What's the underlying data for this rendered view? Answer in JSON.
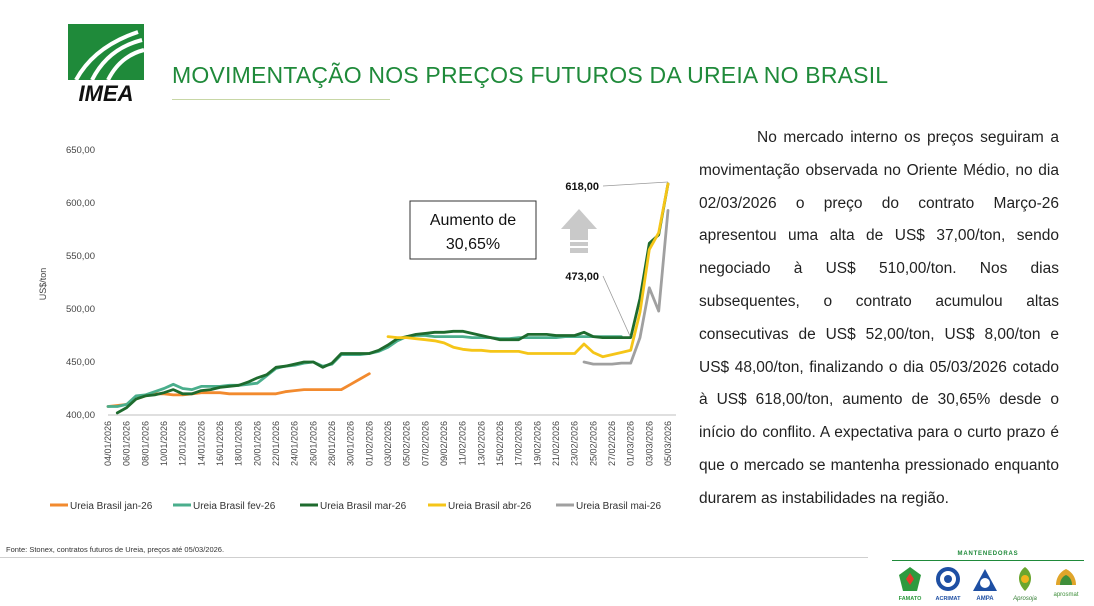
{
  "header": {
    "logo_text": "IMEA",
    "title": "MOVIMENTAÇÃO NOS PREÇOS FUTUROS DA UREIA NO BRASIL"
  },
  "colors": {
    "brand_green": "#1f8a3a",
    "jan": "#f28a2e",
    "fev": "#4aae8c",
    "mar": "#1e6b2e",
    "abr": "#f5c518",
    "mai": "#a0a0a0"
  },
  "chart_data": {
    "type": "line",
    "ylabel": "US$/ton",
    "ylim": [
      400,
      650
    ],
    "yticks": [
      "650,00",
      "600,00",
      "550,00",
      "500,00",
      "450,00",
      "400,00"
    ],
    "x_tick_labels": [
      "04/01/2026",
      "06/01/2026",
      "08/01/2026",
      "10/01/2026",
      "12/01/2026",
      "14/01/2026",
      "16/01/2026",
      "18/01/2026",
      "20/01/2026",
      "22/01/2026",
      "24/01/2026",
      "26/01/2026",
      "28/01/2026",
      "30/01/2026",
      "01/02/2026",
      "03/02/2026",
      "05/02/2026",
      "07/02/2026",
      "09/02/2026",
      "11/02/2026",
      "13/02/2026",
      "15/02/2026",
      "17/02/2026",
      "19/02/2026",
      "21/02/2026",
      "23/02/2026",
      "25/02/2026",
      "27/02/2026",
      "01/03/2026",
      "03/03/2026",
      "05/03/2026"
    ],
    "x_start": "2026-01-04",
    "x_end": "2026-03-05",
    "series": [
      {
        "name": "Ureia Brasil jan-26",
        "color": "#f28a2e",
        "points": [
          [
            "2026-01-04",
            408
          ],
          [
            "2026-01-05",
            409
          ],
          [
            "2026-01-06",
            410
          ],
          [
            "2026-01-07",
            415
          ],
          [
            "2026-01-08",
            418
          ],
          [
            "2026-01-09",
            420
          ],
          [
            "2026-01-10",
            420
          ],
          [
            "2026-01-11",
            419
          ],
          [
            "2026-01-12",
            419
          ],
          [
            "2026-01-13",
            420
          ],
          [
            "2026-01-14",
            421
          ],
          [
            "2026-01-15",
            421
          ],
          [
            "2026-01-16",
            421
          ],
          [
            "2026-01-17",
            420
          ],
          [
            "2026-01-18",
            420
          ],
          [
            "2026-01-19",
            420
          ],
          [
            "2026-01-20",
            420
          ],
          [
            "2026-01-21",
            420
          ],
          [
            "2026-01-22",
            420
          ],
          [
            "2026-01-23",
            422
          ],
          [
            "2026-01-24",
            423
          ],
          [
            "2026-01-25",
            424
          ],
          [
            "2026-01-26",
            424
          ],
          [
            "2026-01-27",
            424
          ],
          [
            "2026-01-28",
            424
          ],
          [
            "2026-01-29",
            424
          ],
          [
            "2026-01-30",
            429
          ],
          [
            "2026-01-31",
            434
          ],
          [
            "2026-02-01",
            439
          ]
        ]
      },
      {
        "name": "Ureia Brasil fev-26",
        "color": "#4aae8c",
        "points": [
          [
            "2026-01-04",
            408
          ],
          [
            "2026-01-05",
            408
          ],
          [
            "2026-01-06",
            410
          ],
          [
            "2026-01-07",
            418
          ],
          [
            "2026-01-08",
            419
          ],
          [
            "2026-01-09",
            422
          ],
          [
            "2026-01-10",
            425
          ],
          [
            "2026-01-11",
            429
          ],
          [
            "2026-01-12",
            425
          ],
          [
            "2026-01-13",
            424
          ],
          [
            "2026-01-14",
            427
          ],
          [
            "2026-01-15",
            427
          ],
          [
            "2026-01-16",
            427
          ],
          [
            "2026-01-17",
            428
          ],
          [
            "2026-01-18",
            428
          ],
          [
            "2026-01-19",
            429
          ],
          [
            "2026-01-20",
            430
          ],
          [
            "2026-01-21",
            437
          ],
          [
            "2026-01-22",
            444
          ],
          [
            "2026-01-23",
            446
          ],
          [
            "2026-01-24",
            447
          ],
          [
            "2026-01-25",
            449
          ],
          [
            "2026-01-26",
            450
          ],
          [
            "2026-01-27",
            446
          ],
          [
            "2026-01-28",
            448
          ],
          [
            "2026-01-29",
            457
          ],
          [
            "2026-01-30",
            457
          ],
          [
            "2026-01-31",
            457
          ],
          [
            "2026-02-01",
            458
          ],
          [
            "2026-02-02",
            460
          ],
          [
            "2026-02-03",
            464
          ],
          [
            "2026-02-04",
            470
          ],
          [
            "2026-02-05",
            474
          ],
          [
            "2026-02-06",
            475
          ],
          [
            "2026-02-07",
            475
          ],
          [
            "2026-02-08",
            474
          ],
          [
            "2026-02-09",
            474
          ],
          [
            "2026-02-10",
            474
          ],
          [
            "2026-02-11",
            474
          ],
          [
            "2026-02-12",
            473
          ],
          [
            "2026-02-13",
            473
          ],
          [
            "2026-02-14",
            473
          ],
          [
            "2026-02-15",
            472
          ],
          [
            "2026-02-16",
            472
          ],
          [
            "2026-02-17",
            473
          ],
          [
            "2026-02-18",
            473
          ],
          [
            "2026-02-19",
            473
          ],
          [
            "2026-02-20",
            473
          ],
          [
            "2026-02-21",
            473
          ],
          [
            "2026-02-22",
            474
          ],
          [
            "2026-02-23",
            474
          ],
          [
            "2026-02-24",
            474
          ],
          [
            "2026-02-25",
            474
          ],
          [
            "2026-02-26",
            474
          ],
          [
            "2026-02-27",
            474
          ],
          [
            "2026-02-28",
            474
          ]
        ]
      },
      {
        "name": "Ureia Brasil mar-26",
        "color": "#1e6b2e",
        "points": [
          [
            "2026-01-05",
            402
          ],
          [
            "2026-01-06",
            407
          ],
          [
            "2026-01-07",
            415
          ],
          [
            "2026-01-08",
            418
          ],
          [
            "2026-01-09",
            419
          ],
          [
            "2026-01-10",
            421
          ],
          [
            "2026-01-11",
            424
          ],
          [
            "2026-01-12",
            420
          ],
          [
            "2026-01-13",
            420
          ],
          [
            "2026-01-14",
            423
          ],
          [
            "2026-01-15",
            424
          ],
          [
            "2026-01-16",
            426
          ],
          [
            "2026-01-17",
            427
          ],
          [
            "2026-01-18",
            428
          ],
          [
            "2026-01-19",
            431
          ],
          [
            "2026-01-20",
            435
          ],
          [
            "2026-01-21",
            438
          ],
          [
            "2026-01-22",
            445
          ],
          [
            "2026-01-23",
            446
          ],
          [
            "2026-01-24",
            448
          ],
          [
            "2026-01-25",
            450
          ],
          [
            "2026-01-26",
            450
          ],
          [
            "2026-01-27",
            445
          ],
          [
            "2026-01-28",
            449
          ],
          [
            "2026-01-29",
            458
          ],
          [
            "2026-01-30",
            458
          ],
          [
            "2026-01-31",
            458
          ],
          [
            "2026-02-01",
            458
          ],
          [
            "2026-02-02",
            461
          ],
          [
            "2026-02-03",
            466
          ],
          [
            "2026-02-04",
            472
          ],
          [
            "2026-02-05",
            474
          ],
          [
            "2026-02-06",
            476
          ],
          [
            "2026-02-07",
            477
          ],
          [
            "2026-02-08",
            478
          ],
          [
            "2026-02-09",
            478
          ],
          [
            "2026-02-10",
            479
          ],
          [
            "2026-02-11",
            479
          ],
          [
            "2026-02-12",
            477
          ],
          [
            "2026-02-13",
            475
          ],
          [
            "2026-02-14",
            473
          ],
          [
            "2026-02-15",
            471
          ],
          [
            "2026-02-16",
            471
          ],
          [
            "2026-02-17",
            471
          ],
          [
            "2026-02-18",
            476
          ],
          [
            "2026-02-19",
            476
          ],
          [
            "2026-02-20",
            476
          ],
          [
            "2026-02-21",
            475
          ],
          [
            "2026-02-22",
            475
          ],
          [
            "2026-02-23",
            475
          ],
          [
            "2026-02-24",
            478
          ],
          [
            "2026-02-25",
            474
          ],
          [
            "2026-02-26",
            473
          ],
          [
            "2026-02-27",
            473
          ],
          [
            "2026-02-28",
            473
          ],
          [
            "2026-03-01",
            473
          ],
          [
            "2026-03-02",
            510
          ],
          [
            "2026-03-03",
            562
          ],
          [
            "2026-03-04",
            570
          ],
          [
            "2026-03-05",
            618
          ]
        ]
      },
      {
        "name": "Ureia Brasil abr-26",
        "color": "#f5c518",
        "points": [
          [
            "2026-02-03",
            474
          ],
          [
            "2026-02-04",
            473
          ],
          [
            "2026-02-05",
            473
          ],
          [
            "2026-02-06",
            472
          ],
          [
            "2026-02-07",
            471
          ],
          [
            "2026-02-08",
            470
          ],
          [
            "2026-02-09",
            468
          ],
          [
            "2026-02-10",
            464
          ],
          [
            "2026-02-11",
            462
          ],
          [
            "2026-02-12",
            461
          ],
          [
            "2026-02-13",
            461
          ],
          [
            "2026-02-14",
            460
          ],
          [
            "2026-02-15",
            460
          ],
          [
            "2026-02-16",
            460
          ],
          [
            "2026-02-17",
            460
          ],
          [
            "2026-02-18",
            458
          ],
          [
            "2026-02-19",
            458
          ],
          [
            "2026-02-20",
            458
          ],
          [
            "2026-02-21",
            458
          ],
          [
            "2026-02-22",
            458
          ],
          [
            "2026-02-23",
            458
          ],
          [
            "2026-02-24",
            467
          ],
          [
            "2026-02-25",
            459
          ],
          [
            "2026-02-26",
            455
          ],
          [
            "2026-02-27",
            457
          ],
          [
            "2026-02-28",
            459
          ],
          [
            "2026-03-01",
            461
          ],
          [
            "2026-03-02",
            497
          ],
          [
            "2026-03-03",
            556
          ],
          [
            "2026-03-04",
            572
          ],
          [
            "2026-03-05",
            618
          ]
        ]
      },
      {
        "name": "Ureia Brasil mai-26",
        "color": "#a0a0a0",
        "points": [
          [
            "2026-02-24",
            450
          ],
          [
            "2026-02-25",
            448
          ],
          [
            "2026-02-26",
            448
          ],
          [
            "2026-02-27",
            448
          ],
          [
            "2026-02-28",
            449
          ],
          [
            "2026-03-01",
            449
          ],
          [
            "2026-03-02",
            473
          ],
          [
            "2026-03-03",
            520
          ],
          [
            "2026-03-04",
            498
          ],
          [
            "2026-03-05",
            593
          ]
        ]
      }
    ],
    "annotations": {
      "callout_line1": "Aumento de",
      "callout_line2": "30,65%",
      "label_high": "618,00",
      "label_low": "473,00"
    },
    "legend_position": "bottom",
    "grid": false
  },
  "commentary": "No mercado interno os preços seguiram a movimentação observada no Oriente Médio, no dia 02/03/2026 o preço do contrato Março-26 apresentou uma alta de US$ 37,00/ton, sendo negociado à US$ 510,00/ton. Nos dias subsequentes, o contrato acumulou altas consecutivas de US$ 52,00/ton, US$ 8,00/ton e US$ 48,00/ton, finalizando o dia 05/03/2026 cotado à US$ 618,00/ton, aumento de 30,65% desde o início do conflito. A expectativa para o curto prazo é que o mercado se mantenha pressionado enquanto durarem as instabilidades na região.",
  "footer": {
    "source": "Fonte: Stonex, contratos futuros de Ureia, preços até 05/03/2026.",
    "sponsors_label": "MANTENEDORAS",
    "sponsors": [
      "FAMATO",
      "ACRIMAT",
      "AMPA",
      "Aprosoja",
      "aprosmat"
    ]
  }
}
